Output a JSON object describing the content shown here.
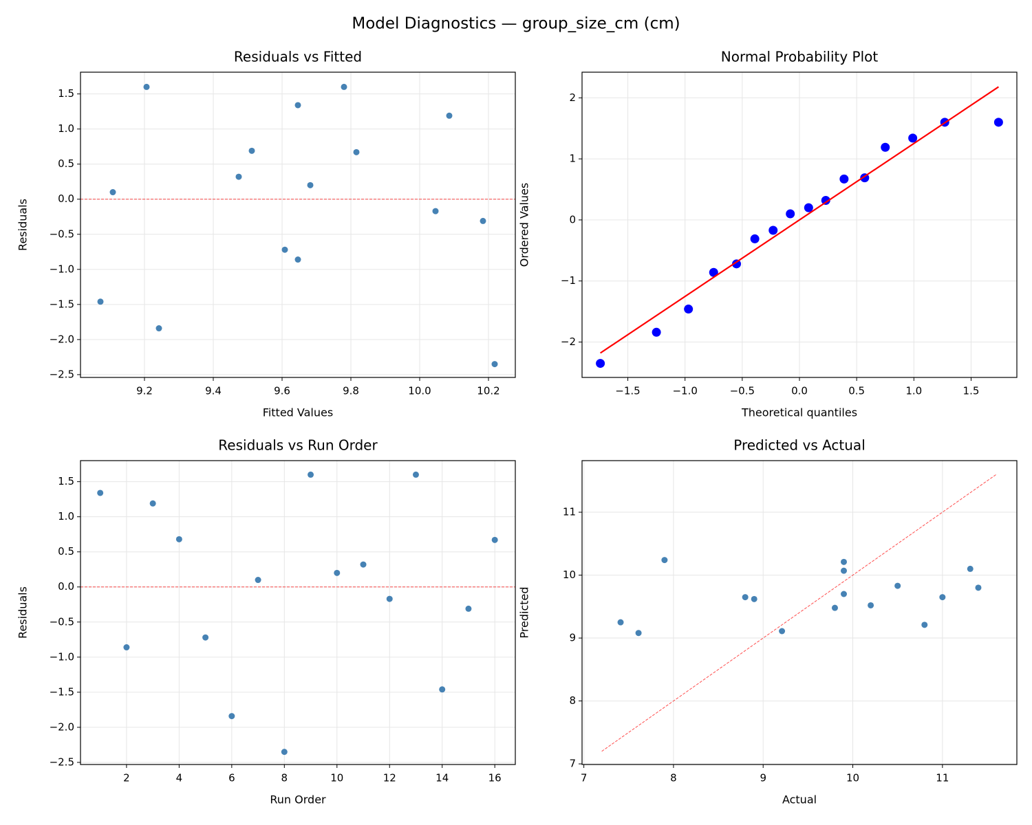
{
  "title": "Model Diagnostics — group_size_cm (cm)",
  "chart_data": [
    {
      "type": "scatter",
      "title": "Residuals vs Fitted",
      "xlabel": "Fitted Values",
      "ylabel": "Residuals",
      "color": "#4682b4",
      "grid": true,
      "x": [
        9.072,
        9.108,
        9.206,
        9.242,
        9.474,
        9.512,
        9.608,
        9.646,
        9.646,
        9.682,
        9.78,
        9.816,
        10.046,
        10.086,
        10.184,
        10.218
      ],
      "y": [
        -1.46,
        0.1,
        1.6,
        -1.84,
        0.32,
        0.69,
        -0.72,
        1.34,
        -0.86,
        0.2,
        1.6,
        0.67,
        -0.17,
        1.19,
        -0.31,
        -2.35
      ],
      "xlim": [
        9.014,
        10.278
      ],
      "ylim": [
        -2.54,
        1.81
      ],
      "xticks": [
        9.2,
        9.4,
        9.6,
        9.8,
        {
          "value": 10,
          "label": "10.0"
        },
        10.2
      ],
      "yticks": [
        {
          "value": -2.5,
          "label": "−2.5"
        },
        {
          "value": -2,
          "label": "−2.0"
        },
        {
          "value": -1.5,
          "label": "−1.5"
        },
        {
          "value": -1,
          "label": "−1.0"
        },
        {
          "value": -0.5,
          "label": "−0.5"
        },
        {
          "value": 0,
          "label": "0.0"
        },
        0.5,
        {
          "value": 1,
          "label": "1.0"
        },
        1.5
      ],
      "hline": {
        "y": 0,
        "color": "#ff0000"
      }
    },
    {
      "type": "scatter",
      "title": "Normal Probability Plot",
      "xlabel": "Theoretical quantiles",
      "ylabel": "Ordered Values",
      "color": "#0000ff",
      "grid": true,
      "x": [
        -1.74,
        -1.25,
        -0.97,
        -0.75,
        -0.55,
        -0.39,
        -0.23,
        -0.08,
        0.08,
        0.23,
        0.39,
        0.57,
        0.75,
        0.99,
        1.27,
        1.74
      ],
      "y": [
        -2.35,
        -1.84,
        -1.46,
        -0.86,
        -0.72,
        -0.31,
        -0.17,
        0.1,
        0.2,
        0.32,
        0.67,
        0.69,
        1.19,
        1.34,
        1.6,
        1.6
      ],
      "xlim": [
        -1.9,
        1.9
      ],
      "ylim": [
        -2.58,
        2.42
      ],
      "xticks": [
        {
          "value": -1.5,
          "label": "−1.5"
        },
        {
          "value": -1,
          "label": "−1.0"
        },
        {
          "value": -0.5,
          "label": "−0.5"
        },
        {
          "value": 0,
          "label": "0.0"
        },
        0.5,
        {
          "value": 1,
          "label": "1.0"
        },
        1.5
      ],
      "yticks": [
        {
          "value": -2,
          "label": "−2"
        },
        {
          "value": -1,
          "label": "−1"
        },
        0,
        1,
        2
      ],
      "fit_line": {
        "x": [
          -1.74,
          1.74
        ],
        "y": [
          -2.18,
          2.18
        ],
        "color": "#ff0000"
      }
    },
    {
      "type": "scatter",
      "title": "Residuals vs Run Order",
      "xlabel": "Run Order",
      "ylabel": "Residuals",
      "color": "#4682b4",
      "grid": true,
      "x": [
        1,
        2,
        3,
        4,
        5,
        6,
        7,
        8,
        9,
        10,
        11,
        12,
        13,
        14,
        15,
        16
      ],
      "y": [
        1.34,
        -0.86,
        1.19,
        0.68,
        -0.72,
        -1.84,
        0.1,
        -2.35,
        1.6,
        0.2,
        0.32,
        -0.17,
        1.6,
        -1.46,
        -0.31,
        0.67
      ],
      "xlim": [
        0.25,
        16.78
      ],
      "ylim": [
        -2.53,
        1.8
      ],
      "xticks": [
        2,
        4,
        6,
        8,
        10,
        12,
        14,
        16
      ],
      "yticks": [
        {
          "value": -2.5,
          "label": "−2.5"
        },
        {
          "value": -2,
          "label": "−2.0"
        },
        {
          "value": -1.5,
          "label": "−1.5"
        },
        {
          "value": -1,
          "label": "−1.0"
        },
        {
          "value": -0.5,
          "label": "−0.5"
        },
        {
          "value": 0,
          "label": "0.0"
        },
        0.5,
        {
          "value": 1,
          "label": "1.0"
        },
        1.5
      ],
      "hline": {
        "y": 0,
        "color": "#ff0000"
      }
    },
    {
      "type": "scatter",
      "title": "Predicted vs Actual",
      "xlabel": "Actual",
      "ylabel": "Predicted",
      "color": "#4682b4",
      "grid": true,
      "x": [
        7.41,
        7.61,
        7.9,
        8.8,
        8.9,
        9.21,
        9.8,
        9.9,
        9.9,
        9.9,
        10.2,
        10.5,
        10.8,
        11.0,
        11.31,
        11.4
      ],
      "y": [
        9.25,
        9.08,
        10.24,
        9.65,
        9.62,
        9.11,
        9.48,
        10.21,
        10.07,
        9.7,
        9.52,
        9.83,
        9.21,
        9.65,
        10.1,
        9.8
      ],
      "xlim": [
        6.98,
        11.83
      ],
      "ylim": [
        6.99,
        11.82
      ],
      "xticks": [
        7,
        8,
        9,
        10,
        11
      ],
      "yticks": [
        7,
        8,
        9,
        10,
        11
      ],
      "reference_line": {
        "x": [
          7.2,
          11.6
        ],
        "y": [
          7.2,
          11.6
        ],
        "color": "#ff0000"
      }
    }
  ]
}
